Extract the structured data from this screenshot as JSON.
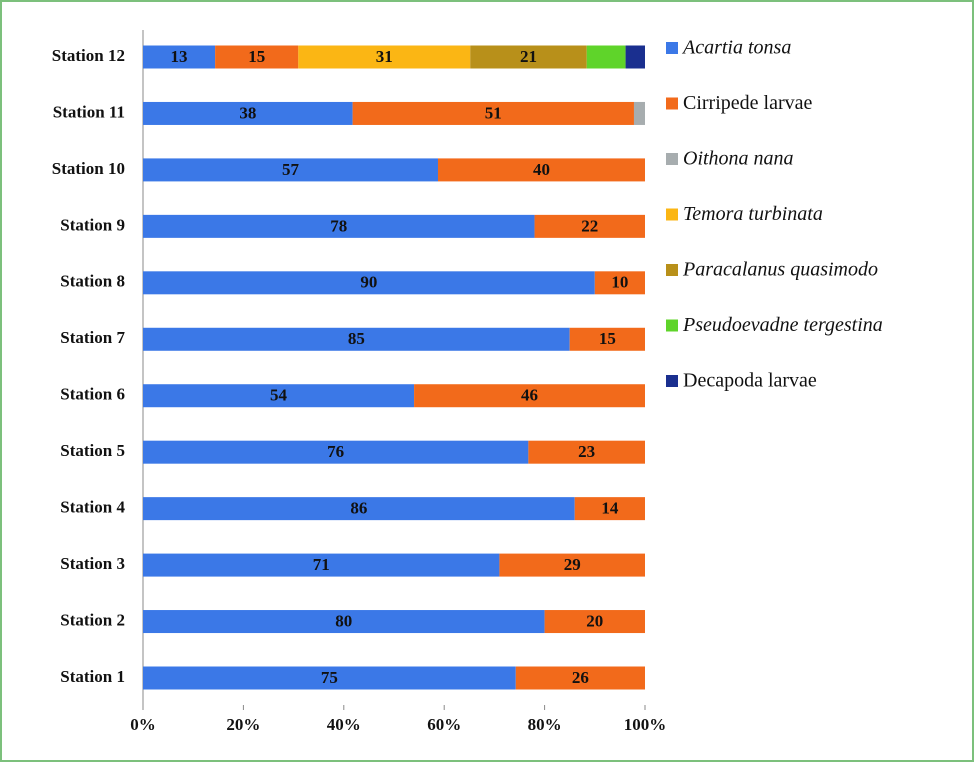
{
  "chart_data": {
    "type": "bar",
    "orientation": "horizontal",
    "stacked": "percent",
    "categories": [
      "Station 1",
      "Station 2",
      "Station 3",
      "Station 4",
      "Station 5",
      "Station 6",
      "Station 7",
      "Station 8",
      "Station 9",
      "Station 10",
      "Station 11",
      "Station 12"
    ],
    "series": [
      {
        "name": "Acartia tonsa",
        "color": "#3b78e7",
        "italic": true,
        "data_labels": true,
        "values": [
          75,
          80,
          71,
          86,
          76,
          54,
          85,
          90,
          78,
          57,
          38,
          13
        ]
      },
      {
        "name": "Cirripede larvae",
        "color": "#f26a1b",
        "italic": false,
        "data_labels": true,
        "values": [
          26,
          20,
          29,
          14,
          23,
          46,
          15,
          10,
          22,
          40,
          51,
          15
        ]
      },
      {
        "name": "Oithona nana",
        "color": "#a7adaf",
        "italic": true,
        "data_labels": false,
        "values": [
          null,
          null,
          null,
          null,
          null,
          null,
          null,
          null,
          null,
          null,
          2,
          null
        ]
      },
      {
        "name": "Temora turbinata",
        "color": "#fbb614",
        "italic": true,
        "data_labels": true,
        "values": [
          null,
          null,
          null,
          null,
          null,
          null,
          null,
          null,
          null,
          null,
          null,
          31
        ]
      },
      {
        "name": "Paracalanus quasimodo",
        "color": "#b8901a",
        "italic": true,
        "data_labels": true,
        "values": [
          null,
          null,
          null,
          null,
          null,
          null,
          null,
          null,
          null,
          null,
          null,
          21
        ]
      },
      {
        "name": "Pseudoevadne tergestina",
        "color": "#5fd42a",
        "italic": true,
        "data_labels": false,
        "values": [
          null,
          null,
          null,
          null,
          null,
          null,
          null,
          null,
          null,
          null,
          null,
          7
        ]
      },
      {
        "name": "Decapoda larvae",
        "color": "#1a2f8f",
        "italic": false,
        "data_labels": false,
        "values": [
          null,
          null,
          null,
          null,
          null,
          null,
          null,
          null,
          null,
          null,
          null,
          3.5
        ]
      }
    ],
    "xlim": [
      0,
      100
    ],
    "xticks": [
      {
        "value": 0,
        "label": "0%"
      },
      {
        "value": 20,
        "label": "20%"
      },
      {
        "value": 40,
        "label": "40%"
      },
      {
        "value": 60,
        "label": "60%"
      },
      {
        "value": 80,
        "label": "80%"
      },
      {
        "value": 100,
        "label": "100%"
      }
    ],
    "legend": "right"
  }
}
